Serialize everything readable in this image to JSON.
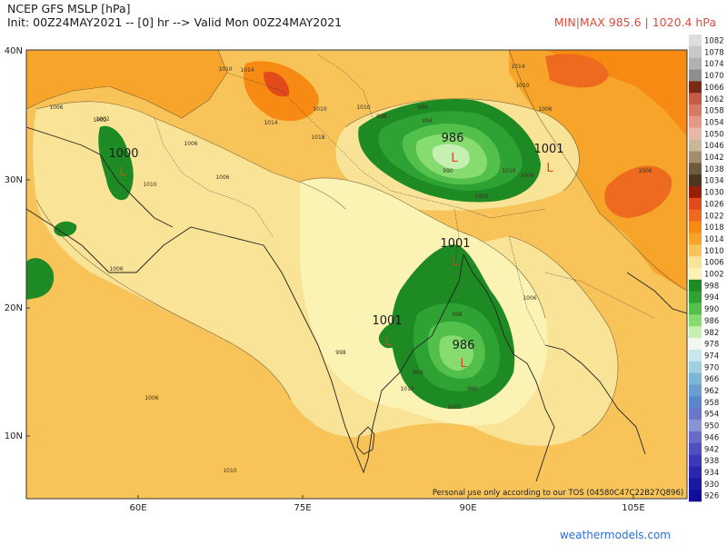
{
  "header": {
    "title_line1": "NCEP GFS MSLP [hPa]",
    "title_line2": "Init: 00Z24MAY2021 -- [0] hr --> Valid Mon 00Z24MAY2021",
    "minmax": "MIN|MAX 985.6 | 1020.4 hPa"
  },
  "axes": {
    "lat_labels": [
      "40N",
      "30N",
      "20N",
      "10N"
    ],
    "lon_labels": [
      "60E",
      "75E",
      "90E",
      "105E"
    ]
  },
  "legend": {
    "levels": [
      "1082",
      "1078",
      "1074",
      "1070",
      "1066",
      "1062",
      "1058",
      "1054",
      "1050",
      "1046",
      "1042",
      "1038",
      "1034",
      "1030",
      "1026",
      "1022",
      "1018",
      "1014",
      "1010",
      "1006",
      "1002",
      "998",
      "994",
      "990",
      "986",
      "982",
      "978",
      "974",
      "970",
      "966",
      "962",
      "958",
      "954",
      "950",
      "946",
      "942",
      "938",
      "934",
      "930",
      "926"
    ],
    "colors": [
      "#dedede",
      "#c8c8c8",
      "#b0b0b0",
      "#8e8e8e",
      "#7a2a14",
      "#c65a44",
      "#d77a64",
      "#e49a86",
      "#eab6a8",
      "#c8b89a",
      "#a38d6c",
      "#6e5a3c",
      "#4d3520",
      "#9b1d06",
      "#e24a1b",
      "#ee6a1e",
      "#f68a12",
      "#f6a42a",
      "#f8c45a",
      "#f9e396",
      "#fbf3b4",
      "#1e8a24",
      "#2fa234",
      "#52c04a",
      "#86dc6e",
      "#c6f0b2",
      "#f2f8f0",
      "#c8e6ee",
      "#9ed0e0",
      "#7cb6d6",
      "#6a9ed2",
      "#5a86ca",
      "#6a76c8",
      "#8a94d4",
      "#6a6ac8",
      "#5050c0",
      "#3c38b8",
      "#2a26b0",
      "#1c18a6",
      "#120e9c"
    ]
  },
  "map": {
    "labels": {
      "north_low_center": "986",
      "north_low_outer": "1001",
      "bay_low_center": "986",
      "bay_low_outer_west": "1001",
      "bay_low_outer_north": "1001",
      "west_low": "1000",
      "low_symbol": "L"
    },
    "contour_labels": [
      "1010",
      "1006",
      "1002",
      "1014",
      "1010",
      "1006",
      "1010",
      "1014",
      "1018",
      "1006",
      "1010",
      "1006",
      "1002",
      "998",
      "994",
      "990",
      "998",
      "994",
      "990",
      "1006",
      "1002",
      "998",
      "1006",
      "1010",
      "1010",
      "1006",
      "1014",
      "1010",
      "1006",
      "1002",
      "998",
      "1006",
      "1010"
    ]
  },
  "footer": {
    "personal_use": "Personal use only according to our TOS (04580C47C22B27Q896)",
    "site": "weathermodels.com"
  }
}
